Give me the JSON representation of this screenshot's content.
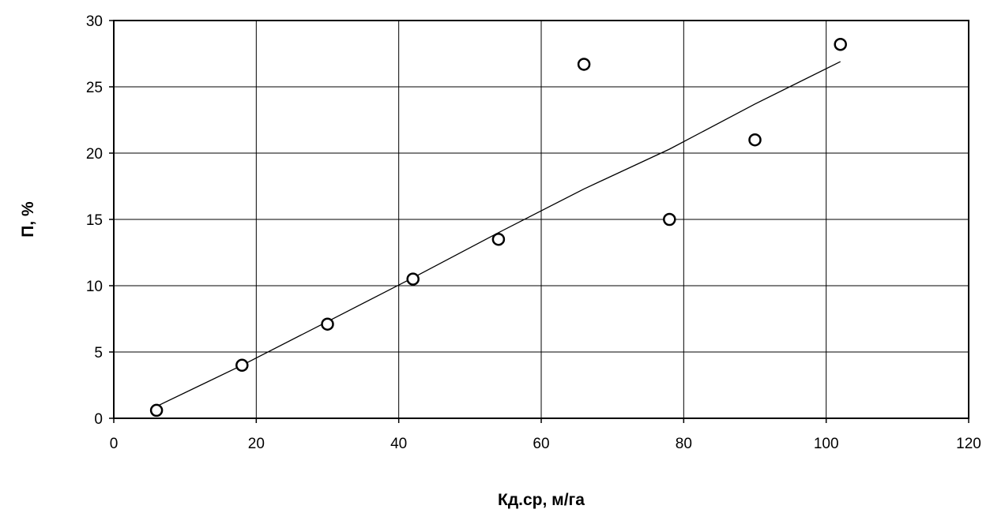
{
  "chart_data": {
    "type": "scatter",
    "title": "",
    "xlabel": "Кд.ср, м/га",
    "ylabel": "П, %",
    "xlim": [
      0,
      120
    ],
    "ylim": [
      0,
      30
    ],
    "x_ticks": [
      0,
      20,
      40,
      60,
      80,
      100,
      120
    ],
    "y_ticks": [
      0,
      5,
      10,
      15,
      20,
      25,
      30
    ],
    "x_tick_labels": [
      "0",
      "20",
      "40",
      "60",
      "80",
      "100",
      "120"
    ],
    "y_tick_labels": [
      "0",
      "5",
      "10",
      "15",
      "20",
      "25",
      "30"
    ],
    "grid": true,
    "legend": "none",
    "series": [
      {
        "kind": "markers",
        "marker": "open-circle",
        "color": "#000000",
        "points": [
          {
            "x": 6,
            "y": 0.6
          },
          {
            "x": 18,
            "y": 4.0
          },
          {
            "x": 30,
            "y": 7.1
          },
          {
            "x": 42,
            "y": 10.5
          },
          {
            "x": 54,
            "y": 13.5
          },
          {
            "x": 66,
            "y": 26.7
          },
          {
            "x": 78,
            "y": 15.0
          },
          {
            "x": 90,
            "y": 21.0
          },
          {
            "x": 102,
            "y": 28.2
          }
        ]
      },
      {
        "kind": "trend-line",
        "color": "#000000",
        "points": [
          {
            "x": 6,
            "y": 0.9
          },
          {
            "x": 18,
            "y": 4.0
          },
          {
            "x": 30,
            "y": 7.3
          },
          {
            "x": 42,
            "y": 10.6
          },
          {
            "x": 54,
            "y": 14.0
          },
          {
            "x": 66,
            "y": 17.3
          },
          {
            "x": 78,
            "y": 20.3
          },
          {
            "x": 90,
            "y": 23.7
          },
          {
            "x": 102,
            "y": 26.9
          }
        ]
      }
    ]
  }
}
